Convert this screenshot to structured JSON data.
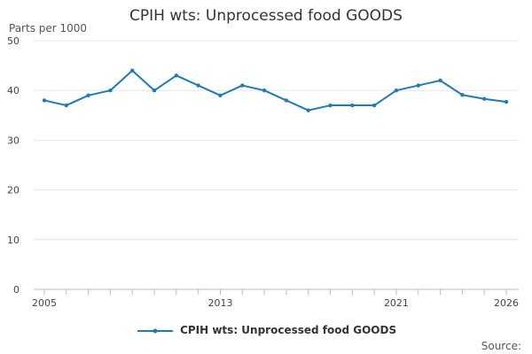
{
  "chart_data": {
    "type": "line",
    "title": "CPIH wts: Unprocessed food GOODS",
    "ylabel": "Parts per 1000",
    "xlabel": "",
    "x_tick_labels": [
      "2005",
      "2013",
      "2021",
      "2026"
    ],
    "y_ticks": [
      0,
      10,
      20,
      30,
      40,
      50
    ],
    "ylim": [
      0,
      50
    ],
    "xlim": [
      2005,
      2026
    ],
    "grid": "horizontal",
    "legend_position": "bottom",
    "series": [
      {
        "name": "CPIH wts: Unprocessed food GOODS",
        "color": "#1f7ab8",
        "x": [
          2005,
          2006,
          2007,
          2008,
          2009,
          2010,
          2011,
          2012,
          2013,
          2014,
          2015,
          2016,
          2017,
          2018,
          2019,
          2020,
          2021,
          2022,
          2023,
          2024,
          2025,
          2026
        ],
        "values": [
          38,
          37,
          39,
          40,
          44,
          40,
          43,
          41,
          39,
          41,
          40,
          38,
          36,
          37,
          37,
          37,
          40,
          41,
          42,
          39.1,
          38.3,
          37.7
        ]
      }
    ]
  },
  "source_label": "Source:"
}
